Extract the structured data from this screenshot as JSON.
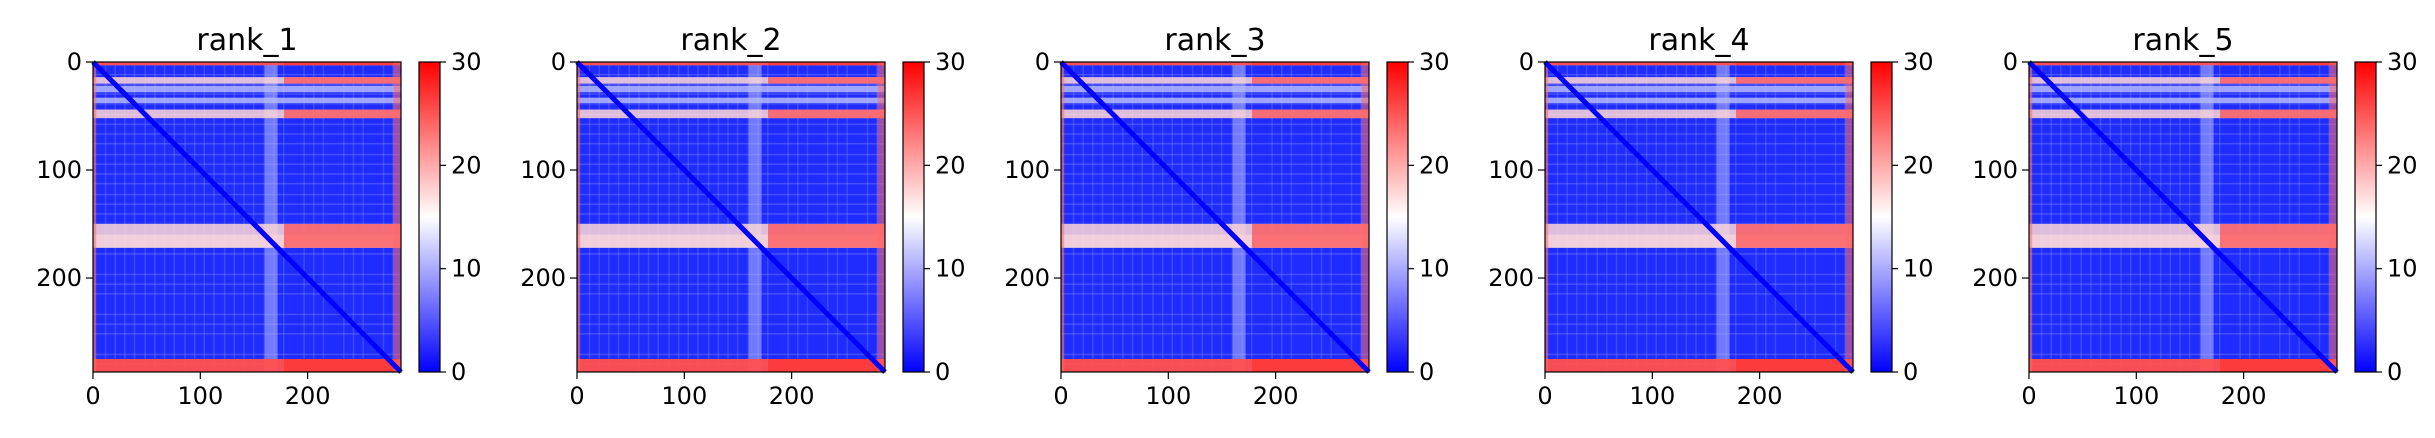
{
  "chart_data": {
    "type": "heatmap",
    "panel_count": 5,
    "panels": [
      {
        "title": "rank_1"
      },
      {
        "title": "rank_2"
      },
      {
        "title": "rank_3"
      },
      {
        "title": "rank_4"
      },
      {
        "title": "rank_5"
      }
    ],
    "matrix_size": 287,
    "xlim": [
      0,
      287
    ],
    "ylim": [
      0,
      287
    ],
    "x_ticks": [
      "0",
      "100",
      "200"
    ],
    "x_tick_values": [
      0,
      100,
      200
    ],
    "y_ticks": [
      "0",
      "100",
      "200"
    ],
    "y_tick_values": [
      0,
      100,
      200
    ],
    "colorbar": {
      "range": [
        0,
        30
      ],
      "ticks": [
        "0",
        "10",
        "20",
        "30"
      ],
      "tick_values": [
        0,
        10,
        20,
        30
      ],
      "colormap": "bwr",
      "colors": {
        "low": "#0000ff",
        "mid": "#ffffff",
        "high": "#ff0000"
      }
    },
    "features": {
      "high_distance_rows": [
        [
          0,
          3
        ],
        [
          14,
          20
        ],
        [
          44,
          52
        ],
        [
          150,
          172
        ],
        [
          275,
          287
        ]
      ],
      "high_distance_cols": [
        [
          0,
          3
        ],
        [
          280,
          287
        ]
      ],
      "light_bands": [
        [
          22,
          28
        ],
        [
          33,
          38
        ],
        [
          160,
          172
        ]
      ],
      "diagonal": "near-zero"
    }
  }
}
